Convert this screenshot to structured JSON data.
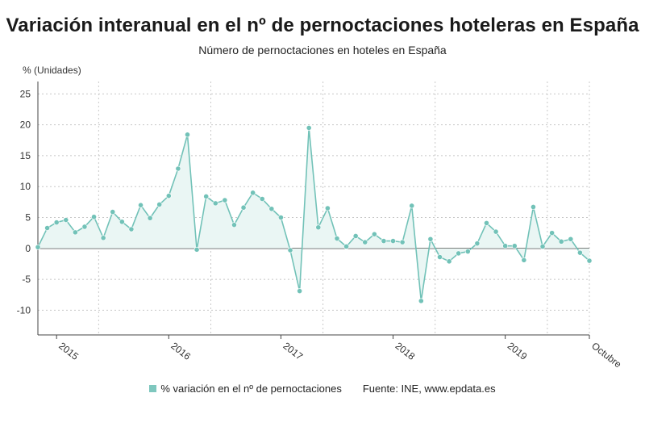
{
  "title": "Variación interanual en el nº de pernoctaciones hoteleras en España",
  "subtitle": "Número de pernoctaciones en hoteles en España",
  "source": "Fuente: INE, www.epdata.es",
  "colors": {
    "line": "#72c2b8",
    "fill": "#eaf6f4",
    "zero": "#333333",
    "grid": "#c8c8c8"
  },
  "chart_data": {
    "type": "area",
    "ylabel": "% (Unidades)",
    "ylim": [
      -14,
      27
    ],
    "yticks": [
      -10,
      -5,
      0,
      5,
      10,
      15,
      20,
      25
    ],
    "xticks": [
      {
        "label": "2015",
        "index": 2
      },
      {
        "label": "2016",
        "index": 14
      },
      {
        "label": "2017",
        "index": 26
      },
      {
        "label": "2018",
        "index": 38
      },
      {
        "label": "2019",
        "index": 50
      },
      {
        "label": "Octubre",
        "index": 59
      }
    ],
    "x_range": [
      0,
      59
    ],
    "grid": {
      "vertical": true,
      "horizontal": true
    },
    "legend_position": "bottom",
    "series": [
      {
        "name": "% variación en el nº de pernoctaciones",
        "values": [
          0.2,
          3.3,
          4.2,
          4.6,
          2.6,
          3.5,
          5.1,
          1.7,
          5.9,
          4.3,
          3.1,
          7.0,
          4.9,
          7.1,
          8.5,
          12.9,
          18.4,
          -0.2,
          8.4,
          7.3,
          7.8,
          3.8,
          6.6,
          9.0,
          8.0,
          6.4,
          5.0,
          -0.3,
          -6.9,
          19.5,
          3.4,
          6.5,
          1.6,
          0.3,
          2.0,
          1.0,
          2.3,
          1.2,
          1.2,
          1.0,
          6.9,
          -8.5,
          1.5,
          -1.4,
          -2.1,
          -0.8,
          -0.5,
          0.8,
          4.1,
          2.7,
          0.4,
          0.4,
          -1.9,
          6.7,
          0.3,
          2.5,
          1.1,
          1.5,
          -0.7,
          -2.0
        ]
      }
    ]
  }
}
